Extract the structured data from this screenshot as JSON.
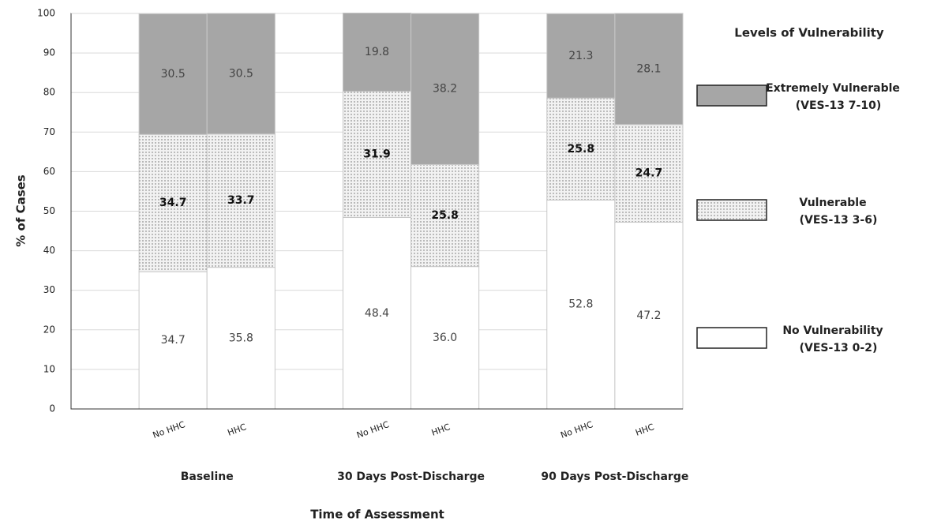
{
  "chart_data": {
    "type": "stacked_bar",
    "ylabel": "% of Cases",
    "xlabel": "Time of Assessment",
    "legend_title": "Levels of Vulnerability",
    "categories": [
      "No HHC",
      "HHC",
      "No HHC",
      "HHC",
      "No HHC",
      "HHC"
    ],
    "groups": [
      "Baseline",
      "30 Days Post-Discharge",
      "90 Days Post-Discharge"
    ],
    "ylim": [
      0,
      100
    ],
    "yticks": [
      0,
      10,
      20,
      30,
      40,
      50,
      60,
      70,
      80,
      90,
      100
    ],
    "grid": true,
    "legend": "right",
    "series": [
      {
        "name": "No Vulnerability",
        "range": "(VES-13 0-2)",
        "color": "#ffffff",
        "values": [
          34.7,
          35.8,
          48.4,
          36.0,
          52.8,
          47.2
        ],
        "value_labels": [
          "34.7",
          "35.8",
          "48.4",
          "36.0",
          "52.8",
          "47.2"
        ]
      },
      {
        "name": "Vulnerable",
        "range": "(VES-13 3-6)",
        "color": "#f2f2f2",
        "pattern": "dots",
        "values": [
          34.7,
          33.7,
          31.9,
          25.8,
          25.8,
          24.7
        ]
      },
      {
        "name": "Extremely Vulnerable",
        "range": "(VES-13 7-10)",
        "color": "#a6a6a6",
        "values": [
          30.5,
          30.5,
          19.8,
          38.2,
          21.3,
          28.1
        ]
      }
    ]
  }
}
